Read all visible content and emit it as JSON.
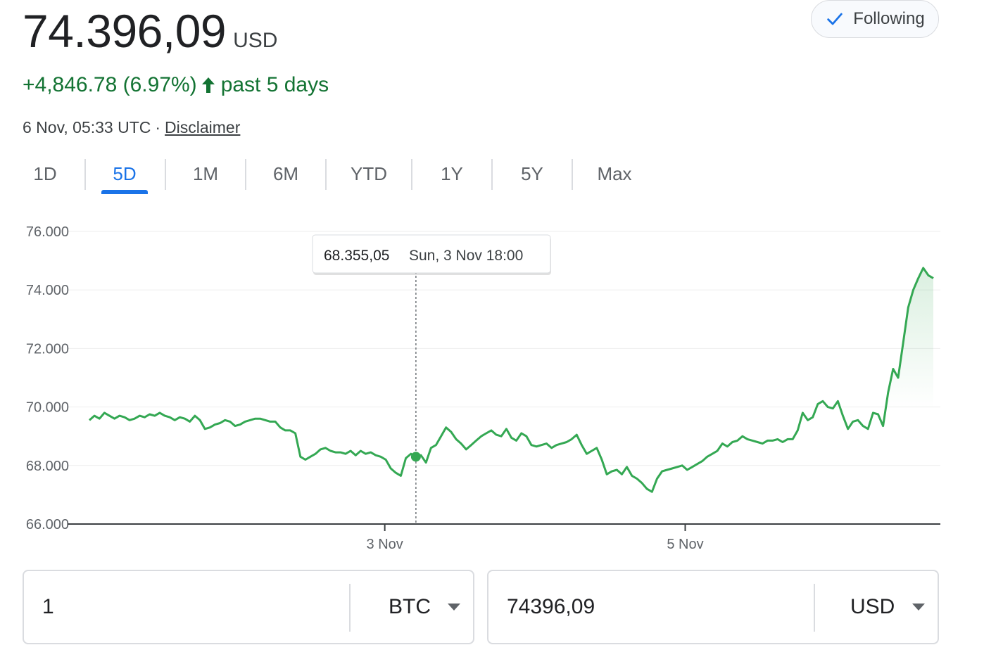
{
  "header": {
    "price": "74.396,09",
    "currency": "USD",
    "follow_label": "Following",
    "change_text": "+4,846.78 (6.97%)",
    "period_text": "past 5 days",
    "timestamp": "6 Nov, 05:33 UTC",
    "separator": "·",
    "disclaimer": "Disclaimer",
    "icons": [
      "checkmark-icon",
      "arrow-up-icon"
    ]
  },
  "tabs": [
    {
      "label": "1D",
      "active": false
    },
    {
      "label": "5D",
      "active": true
    },
    {
      "label": "1M",
      "active": false
    },
    {
      "label": "6M",
      "active": false
    },
    {
      "label": "YTD",
      "active": false
    },
    {
      "label": "1Y",
      "active": false
    },
    {
      "label": "5Y",
      "active": false
    },
    {
      "label": "Max",
      "active": false
    }
  ],
  "colors": {
    "line": "#34a853",
    "positive_text": "#137333",
    "accent": "#1a73e8",
    "grid": "#eeeeee",
    "axis": "#3c4043"
  },
  "chart_data": {
    "type": "area",
    "x_axis": "time",
    "x_ticks": [
      "3 Nov",
      "5 Nov"
    ],
    "ylim": [
      66000,
      76000
    ],
    "y_ticks": [
      "76.000",
      "74.000",
      "72.000",
      "70.000",
      "68.000",
      "66.000"
    ],
    "y_tick_values": [
      76000,
      74000,
      72000,
      70000,
      68000,
      66000
    ],
    "grid": "horizontal",
    "series": [
      {
        "values": [
          69550,
          69700,
          69600,
          69800,
          69700,
          69600,
          69700,
          69650,
          69550,
          69600,
          69700,
          69650,
          69750,
          69700,
          69800,
          69700,
          69650,
          69550,
          69650,
          69600,
          69500,
          69700,
          69550,
          69250,
          69300,
          69400,
          69450,
          69550,
          69500,
          69350,
          69400,
          69500,
          69550,
          69600,
          69600,
          69550,
          69500,
          69500,
          69300,
          69200,
          69200,
          69100,
          68300,
          68200,
          68300,
          68400,
          68550,
          68600,
          68500,
          68450,
          68450,
          68400,
          68500,
          68350,
          68500,
          68400,
          68450,
          68350,
          68300,
          68200,
          67900,
          67750,
          67650,
          68250,
          68400,
          68300,
          68350,
          68100,
          68600,
          68700,
          69000,
          69300,
          69150,
          68900,
          68750,
          68550,
          68700,
          68850,
          69000,
          69100,
          69200,
          69050,
          69000,
          69250,
          68950,
          68850,
          69100,
          69000,
          68700,
          68650,
          68700,
          68750,
          68600,
          68700,
          68750,
          68800,
          68900,
          69050,
          68700,
          68400,
          68500,
          68600,
          68200,
          67700,
          67800,
          67850,
          67700,
          67950,
          67650,
          67550,
          67400,
          67200,
          67100,
          67550,
          67800,
          67850,
          67900,
          67950,
          68000,
          67850,
          67950,
          68050,
          68150,
          68300,
          68400,
          68500,
          68750,
          68650,
          68800,
          68850,
          69000,
          68900,
          68850,
          68800,
          68750,
          68850,
          68850,
          68900,
          68800,
          68900,
          68900,
          69200,
          69800,
          69550,
          69650,
          70100,
          70200,
          70000,
          69950,
          70200,
          69700,
          69250,
          69500,
          69550,
          69350,
          69250,
          69800,
          69750,
          69350,
          70500,
          71300,
          71000,
          72200,
          73400,
          74000,
          74400,
          74750,
          74500,
          74400
        ],
        "last_value": 74396.09
      }
    ],
    "tooltip": {
      "value": "68.355,05",
      "label": "Sun, 3 Nov 18:00",
      "point_index": 65
    }
  },
  "converter": {
    "left": {
      "value": "1",
      "unit": "BTC"
    },
    "right": {
      "value": "74396,09",
      "unit": "USD"
    }
  }
}
